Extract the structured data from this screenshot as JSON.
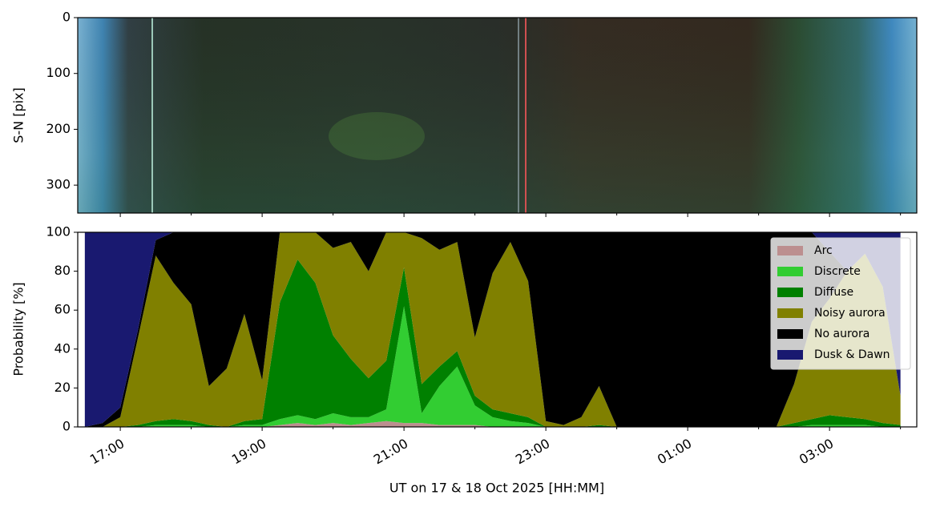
{
  "chart_data": [
    {
      "type": "image",
      "ylabel": "S-N [pix]",
      "xlim": [
        16.4,
        28.23
      ],
      "ylim": [
        350,
        0
      ],
      "yticks": [
        0,
        100,
        200,
        300
      ],
      "xticks": [
        17,
        19,
        21,
        23,
        25,
        27
      ],
      "xminorticks": [
        18,
        20,
        22,
        24,
        26,
        28
      ]
    },
    {
      "type": "stacked_area",
      "ylabel": "Probability [%]",
      "xlabel": "UT on 17 & 18 Oct 2025 [HH:MM]",
      "xlim": [
        16.4,
        28.23
      ],
      "ylim": [
        0,
        100
      ],
      "yticks": [
        0,
        20,
        40,
        60,
        80,
        100
      ],
      "xticks": [
        {
          "value": 17,
          "label": "17:00"
        },
        {
          "value": 19,
          "label": "19:00"
        },
        {
          "value": 21,
          "label": "21:00"
        },
        {
          "value": 23,
          "label": "23:00"
        },
        {
          "value": 25,
          "label": "01:00"
        },
        {
          "value": 27,
          "label": "03:00"
        }
      ],
      "xminorticks": [
        18,
        20,
        22,
        24,
        26,
        28
      ],
      "legend": "upper right",
      "x": [
        16.5,
        16.75,
        17,
        17.25,
        17.5,
        17.75,
        18,
        18.25,
        18.5,
        18.75,
        19,
        19.25,
        19.5,
        19.75,
        20,
        20.25,
        20.5,
        20.75,
        21,
        21.25,
        21.5,
        21.75,
        22,
        22.25,
        22.5,
        22.75,
        23,
        23.25,
        23.5,
        23.75,
        24,
        24.25,
        24.5,
        24.75,
        25,
        25.25,
        25.5,
        25.75,
        26,
        26.25,
        26.5,
        26.75,
        27,
        27.25,
        27.5,
        27.75,
        28
      ],
      "series": [
        {
          "name": "Arc",
          "color": "#bc8f8f",
          "values": [
            0,
            0,
            0,
            0,
            0,
            0,
            0,
            0,
            0,
            0,
            0,
            1,
            2,
            1,
            2,
            1,
            2,
            3,
            2,
            2,
            1,
            1,
            1,
            0,
            0,
            0,
            0,
            0,
            0,
            0,
            0,
            0,
            0,
            0,
            0,
            0,
            0,
            0,
            0,
            0,
            0,
            0,
            0,
            0,
            0,
            0,
            0
          ]
        },
        {
          "name": "Discrete",
          "color": "#32cd32",
          "values": [
            0,
            0,
            0,
            0,
            1,
            1,
            1,
            0,
            0,
            1,
            1,
            3,
            4,
            3,
            5,
            4,
            3,
            6,
            60,
            5,
            20,
            30,
            10,
            5,
            3,
            2,
            0,
            0,
            0,
            0,
            0,
            0,
            0,
            0,
            0,
            0,
            0,
            0,
            0,
            0,
            0,
            1,
            1,
            1,
            1,
            0,
            0
          ]
        },
        {
          "name": "Diffuse",
          "color": "#008000",
          "values": [
            0,
            0,
            0,
            1,
            2,
            3,
            2,
            1,
            0,
            2,
            3,
            60,
            80,
            70,
            40,
            30,
            20,
            25,
            20,
            15,
            10,
            8,
            5,
            4,
            4,
            3,
            0,
            0,
            0,
            1,
            0,
            0,
            0,
            0,
            0,
            0,
            0,
            0,
            0,
            0,
            2,
            3,
            5,
            4,
            3,
            2,
            1
          ]
        },
        {
          "name": "Noisy aurora",
          "color": "#808000",
          "values": [
            0,
            0,
            5,
            45,
            85,
            70,
            60,
            20,
            30,
            55,
            20,
            36,
            14,
            26,
            45,
            60,
            55,
            66,
            18,
            75,
            60,
            56,
            30,
            70,
            88,
            70,
            3,
            1,
            5,
            20,
            0,
            0,
            0,
            0,
            0,
            0,
            0,
            0,
            0,
            0,
            20,
            50,
            60,
            75,
            85,
            70,
            15
          ]
        },
        {
          "name": "No aurora",
          "color": "#000000",
          "values": [
            0,
            2,
            5,
            4,
            8,
            26,
            37,
            79,
            70,
            42,
            76,
            0,
            0,
            0,
            8,
            5,
            20,
            0,
            0,
            3,
            9,
            5,
            54,
            21,
            5,
            25,
            97,
            99,
            95,
            79,
            100,
            100,
            100,
            100,
            100,
            100,
            100,
            100,
            100,
            100,
            78,
            46,
            24,
            0,
            0,
            0,
            0
          ]
        },
        {
          "name": "Dusk & Dawn",
          "color": "#191970",
          "values": [
            100,
            98,
            90,
            50,
            4,
            0,
            0,
            0,
            0,
            0,
            0,
            0,
            0,
            0,
            0,
            0,
            0,
            0,
            0,
            0,
            0,
            0,
            0,
            0,
            0,
            0,
            0,
            0,
            0,
            0,
            0,
            0,
            0,
            0,
            0,
            0,
            0,
            0,
            0,
            0,
            0,
            0,
            10,
            20,
            11,
            28,
            84
          ]
        }
      ]
    }
  ]
}
